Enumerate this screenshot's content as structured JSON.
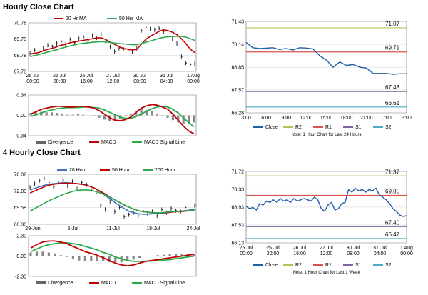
{
  "colors": {
    "close": "#1f5ea8",
    "ma20": "#c00000",
    "ma50": "#2aa84a",
    "divergence": "#888888",
    "r2": "#a9c957",
    "r1": "#d9534f",
    "s1": "#8064a2",
    "s2": "#4bacc6",
    "grid": "#d0d0d0"
  },
  "hourly": {
    "title": "Hourly Close Chart",
    "price_chart": {
      "legend": [
        "20 Hr MA",
        "50 Hrs MA"
      ],
      "y_ticks": [
        "70.78",
        "69.78",
        "68.78",
        "67.78"
      ],
      "x_ticks": [
        "25 Jul\n00:00",
        "25 Jul\n20:00",
        "26 Jul\n16:00",
        "27 Jul\n12:00",
        "30 Jul\n08:00",
        "31 Jul\n04:00",
        "1 Aug\n00:00"
      ]
    },
    "macd_chart": {
      "y_ticks": [
        "0.34",
        "0.00",
        "-0.34"
      ],
      "legend": [
        "Divergence",
        "MACD",
        "MACD Signal Line"
      ]
    }
  },
  "h4": {
    "title": "4 Hourly Close Chart",
    "price_chart": {
      "legend": [
        "20 Hour",
        "50 Hour",
        "200 Hour"
      ],
      "y_ticks": [
        "76.02",
        "72.80",
        "69.58",
        "66.36"
      ],
      "x_ticks": [
        "29-Jun",
        "5-Jul",
        "11-Jul",
        "18-Jul",
        "24-Jul"
      ]
    },
    "macd_chart": {
      "y_ticks": [
        "2.30",
        "0.00",
        "-2.30"
      ],
      "legend": [
        "Divergence",
        "MACD",
        "MACD Signal Line"
      ]
    }
  },
  "chart_data": [
    {
      "id": "hourly-price",
      "type": "line",
      "title": "Hourly Close Chart",
      "ylim": [
        67.78,
        70.78
      ],
      "series": [
        {
          "name": "Close",
          "values": [
            68.9,
            69.1,
            68.95,
            69.2,
            69.4,
            69.3,
            69.5,
            69.6,
            69.45,
            69.75,
            69.55,
            69.8,
            69.9,
            69.7,
            70.0,
            69.85,
            70.1,
            69.6,
            69.3,
            69.0,
            69.2,
            69.15,
            69.1,
            69.0,
            69.2,
            70.3,
            70.5,
            70.4,
            70.35,
            70.45,
            70.25,
            70.3,
            69.8,
            69.5,
            68.7,
            68.3,
            68.2,
            68.25
          ]
        },
        {
          "name": "20 Hr MA",
          "values": [
            68.85,
            68.9,
            68.95,
            69.05,
            69.15,
            69.2,
            69.3,
            69.4,
            69.45,
            69.55,
            69.6,
            69.65,
            69.7,
            69.75,
            69.8,
            69.85,
            69.85,
            69.75,
            69.6,
            69.45,
            69.3,
            69.2,
            69.15,
            69.1,
            69.15,
            69.45,
            69.75,
            69.95,
            70.1,
            70.25,
            70.35,
            70.3,
            70.2,
            70.05,
            69.8,
            69.5,
            69.15,
            68.95
          ]
        },
        {
          "name": "50 Hrs MA",
          "values": [
            68.7,
            68.75,
            68.82,
            68.9,
            68.98,
            69.05,
            69.12,
            69.2,
            69.28,
            69.35,
            69.42,
            69.48,
            69.52,
            69.55,
            69.58,
            69.6,
            69.62,
            69.6,
            69.57,
            69.53,
            69.5,
            69.48,
            69.45,
            69.43,
            69.43,
            69.5,
            69.58,
            69.66,
            69.74,
            69.82,
            69.88,
            69.92,
            69.94,
            69.95,
            69.94,
            69.9,
            69.8,
            69.7
          ]
        }
      ]
    },
    {
      "id": "hourly-macd",
      "type": "line",
      "ylim": [
        -0.34,
        0.34
      ],
      "series": [
        {
          "name": "MACD",
          "values": [
            0.02,
            0.06,
            0.1,
            0.12,
            0.14,
            0.15,
            0.15,
            0.14,
            0.14,
            0.15,
            0.15,
            0.14,
            0.12,
            0.08,
            0.02,
            -0.04,
            -0.08,
            -0.09,
            -0.07,
            -0.03,
            0.05,
            0.12,
            0.16,
            0.18,
            0.17,
            0.14,
            0.1,
            0.02,
            -0.08,
            -0.18,
            -0.26,
            -0.31
          ]
        },
        {
          "name": "MACD Signal Line",
          "values": [
            -0.02,
            0.01,
            0.04,
            0.07,
            0.09,
            0.11,
            0.12,
            0.13,
            0.13,
            0.13,
            0.14,
            0.14,
            0.13,
            0.12,
            0.09,
            0.05,
            0.01,
            -0.03,
            -0.05,
            -0.05,
            -0.02,
            0.02,
            0.07,
            0.11,
            0.14,
            0.15,
            0.14,
            0.1,
            0.04,
            -0.04,
            -0.12,
            -0.19
          ]
        },
        {
          "name": "Divergence",
          "values": [
            0.04,
            0.05,
            0.06,
            0.05,
            0.05,
            0.04,
            0.03,
            0.01,
            0.01,
            0.02,
            0.01,
            0.0,
            -0.01,
            -0.04,
            -0.07,
            -0.09,
            -0.09,
            -0.06,
            -0.02,
            0.02,
            0.07,
            0.1,
            0.09,
            0.07,
            0.03,
            -0.01,
            -0.04,
            -0.08,
            -0.12,
            -0.14,
            -0.14,
            -0.12
          ]
        }
      ]
    },
    {
      "id": "hourly-pivot",
      "type": "line",
      "title": "Note: 1 Hour Chart for Last 24 Hours",
      "ylim": [
        66.28,
        71.43
      ],
      "y_ticks": [
        71.43,
        70.14,
        68.85,
        67.57,
        66.28
      ],
      "x_ticks": [
        "3:00",
        "6:00",
        "9:00",
        "12:00",
        "15:00",
        "18:00",
        "21:00",
        "0:00",
        "3:00"
      ],
      "x": [
        0,
        1,
        2,
        3,
        4,
        5,
        6,
        7,
        8,
        9,
        10,
        11,
        12,
        13,
        14,
        15,
        16,
        17,
        18,
        19,
        20,
        21,
        22,
        23,
        24
      ],
      "series": [
        {
          "name": "Close",
          "values": [
            70.25,
            69.95,
            69.9,
            69.92,
            69.95,
            69.85,
            69.9,
            69.82,
            69.95,
            69.93,
            69.88,
            69.5,
            69.25,
            68.85,
            69.15,
            68.95,
            69.0,
            68.85,
            68.8,
            68.5,
            68.5,
            68.5,
            68.45,
            68.48,
            68.48
          ]
        },
        {
          "name": "R2",
          "level": 71.07,
          "label": "71.07"
        },
        {
          "name": "R1",
          "level": 69.71,
          "label": "69.71"
        },
        {
          "name": "S1",
          "level": 67.48,
          "label": "67.48"
        },
        {
          "name": "S2",
          "level": 66.61,
          "label": "66.61"
        }
      ],
      "legend": [
        "Close",
        "R2",
        "R1",
        "S1",
        "S2"
      ]
    },
    {
      "id": "h4-price",
      "type": "line",
      "title": "4 Hourly Close Chart",
      "ylim": [
        66.36,
        76.02
      ],
      "series": [
        {
          "name": "Close",
          "values": [
            73.5,
            74.2,
            74.8,
            75.2,
            74.4,
            73.6,
            74.5,
            74.9,
            73.8,
            74.6,
            73.2,
            74.4,
            74.0,
            73.0,
            72.4,
            70.0,
            69.2,
            70.8,
            68.8,
            69.6,
            67.8,
            68.2,
            68.6,
            68.0,
            69.0,
            68.4,
            68.8,
            68.0,
            69.2,
            68.6,
            69.4,
            69.0,
            68.8,
            69.6,
            69.2,
            70.0
          ]
        },
        {
          "name": "20 Hour",
          "values": [
            73.0,
            73.3,
            73.6,
            73.9,
            74.1,
            74.2,
            74.3,
            74.4,
            74.4,
            74.3,
            74.2,
            74.1,
            73.9,
            73.6,
            73.2,
            72.6,
            71.9,
            71.3,
            70.6,
            70.0,
            69.4,
            68.9,
            68.6,
            68.4,
            68.3,
            68.3,
            68.4,
            68.4,
            68.5,
            68.6,
            68.7,
            68.8,
            68.9,
            69.0,
            69.1,
            69.3
          ]
        },
        {
          "name": "50 Hour",
          "values": [
            72.4,
            72.8,
            73.2,
            73.6,
            73.9,
            74.1,
            74.2,
            74.3,
            74.3,
            74.3,
            74.2,
            74.1,
            73.9,
            73.6,
            73.2,
            72.7,
            72.2,
            71.6,
            71.1,
            70.6,
            70.1,
            69.7,
            69.3,
            69.0,
            68.8,
            68.7,
            68.6,
            68.6,
            68.6,
            68.6,
            68.7,
            68.8,
            68.8,
            68.9,
            69.0,
            69.1
          ]
        },
        {
          "name": "200 Hour",
          "values": [
            68.9,
            69.4,
            69.9,
            70.4,
            70.9,
            71.3,
            71.7,
            72.1,
            72.4,
            72.7,
            72.9,
            73.0,
            73.0,
            72.9,
            72.7,
            72.4,
            72.0,
            71.6,
            71.1,
            70.6,
            70.1,
            69.7,
            69.3,
            69.0,
            68.8,
            68.7,
            68.6,
            68.6,
            68.6,
            68.7,
            68.8,
            68.8,
            68.9,
            69.0,
            69.0,
            69.1
          ]
        }
      ]
    },
    {
      "id": "h4-macd",
      "type": "line",
      "ylim": [
        -2.3,
        2.3
      ],
      "series": [
        {
          "name": "MACD",
          "values": [
            0.9,
            1.3,
            1.6,
            1.7,
            1.7,
            1.6,
            1.4,
            1.1,
            0.8,
            0.5,
            0.3,
            0.1,
            -0.2,
            -0.5,
            -0.8,
            -1.0,
            -1.1,
            -1.0,
            -0.8,
            -0.6,
            -0.5,
            -0.4,
            -0.3,
            -0.2,
            -0.1,
            0.0,
            0.1,
            0.2
          ]
        },
        {
          "name": "MACD Signal Line",
          "values": [
            0.5,
            0.8,
            1.1,
            1.3,
            1.4,
            1.5,
            1.5,
            1.4,
            1.3,
            1.1,
            0.9,
            0.7,
            0.4,
            0.2,
            -0.1,
            -0.3,
            -0.5,
            -0.6,
            -0.6,
            -0.6,
            -0.55,
            -0.5,
            -0.45,
            -0.4,
            -0.3,
            -0.2,
            -0.1,
            0.0
          ]
        },
        {
          "name": "Divergence",
          "values": [
            0.4,
            0.5,
            0.5,
            0.4,
            0.3,
            0.1,
            -0.1,
            -0.3,
            -0.5,
            -0.6,
            -0.6,
            -0.6,
            -0.6,
            -0.7,
            -0.7,
            -0.7,
            -0.6,
            -0.4,
            -0.2,
            0.0,
            0.05,
            0.1,
            0.15,
            0.2,
            0.2,
            0.2,
            0.2,
            0.2
          ]
        }
      ]
    },
    {
      "id": "h4-pivot",
      "type": "line",
      "title": "Note: 1 Hour Chart for Last 1 Week",
      "ylim": [
        66.13,
        71.72
      ],
      "y_ticks": [
        71.72,
        70.33,
        68.93,
        67.53,
        66.13
      ],
      "x_ticks": [
        "25 Jul\n00:00",
        "25 Jul\n20:00",
        "26 Jul\n16:00",
        "27 Jul\n12:00",
        "30 Jul\n08:00",
        "31 Jul\n04:00",
        "1 Aug\n00:00"
      ],
      "x": [
        0,
        1,
        2,
        3,
        4,
        5,
        6,
        7,
        8,
        9,
        10,
        11,
        12,
        13,
        14,
        15,
        16,
        17,
        18,
        19,
        20,
        21,
        22,
        23,
        24,
        25,
        26,
        27,
        28,
        29,
        30,
        31,
        32,
        33,
        34,
        35,
        36,
        37,
        38,
        39,
        40,
        41,
        42,
        43,
        44,
        45,
        46,
        47
      ],
      "series": [
        {
          "name": "Close",
          "values": [
            69.0,
            68.8,
            68.9,
            68.7,
            69.2,
            69.1,
            69.4,
            69.3,
            69.5,
            69.3,
            69.6,
            69.4,
            69.5,
            69.3,
            69.6,
            69.4,
            69.5,
            69.6,
            69.5,
            69.4,
            69.7,
            69.5,
            68.8,
            68.6,
            69.1,
            69.3,
            68.7,
            68.8,
            69.2,
            69.3,
            70.3,
            70.1,
            70.4,
            70.2,
            70.3,
            70.1,
            70.3,
            70.2,
            70.4,
            69.9,
            69.7,
            69.5,
            69.2,
            68.8,
            68.6,
            68.3,
            68.2,
            68.25
          ]
        },
        {
          "name": "R2",
          "level": 71.37,
          "label": "71.37"
        },
        {
          "name": "R1",
          "level": 69.85,
          "label": "69.85"
        },
        {
          "name": "S1",
          "level": 67.4,
          "label": "67.40"
        },
        {
          "name": "S2",
          "level": 66.47,
          "label": "66.47"
        }
      ],
      "legend": [
        "Close",
        "R2",
        "R1",
        "S1",
        "S2"
      ]
    }
  ]
}
